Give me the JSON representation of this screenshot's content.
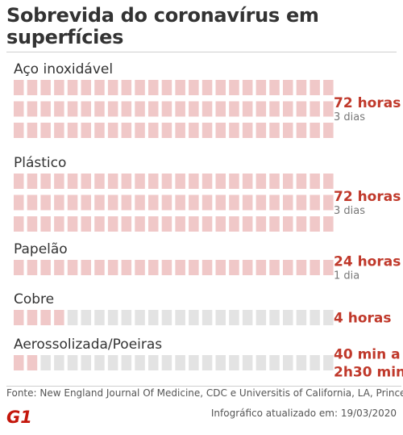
{
  "title": "Sobrevida do coronavírus em superfícies",
  "source": "Fonte: New England Journal Of Medicine, CDC e Universitis of California, LA, Princeton",
  "logo_text": "G1",
  "updated": "Infográfico atualizado em: 19/03/2020",
  "colors": {
    "filled": "#f0c8c8",
    "empty": "#e3e3e3",
    "value": "#c0392b",
    "sub": "#777777",
    "label": "#333333",
    "logo": "#c4170c"
  },
  "chart_data": {
    "type": "bar",
    "unit": "block = 1 hour",
    "categories": [
      "Aço inoxidável",
      "Plástico",
      "Papelão",
      "Cobre",
      "Aerossolizada/Poeiras"
    ],
    "values_hours": [
      72,
      72,
      24,
      4,
      3
    ],
    "value_labels": [
      "72 horas",
      "72 horas",
      "24 horas",
      "4 horas",
      "40 min a\n2h30 min"
    ],
    "sub_labels": [
      "3 dias",
      "3 dias",
      "1 dia",
      "",
      ""
    ]
  }
}
